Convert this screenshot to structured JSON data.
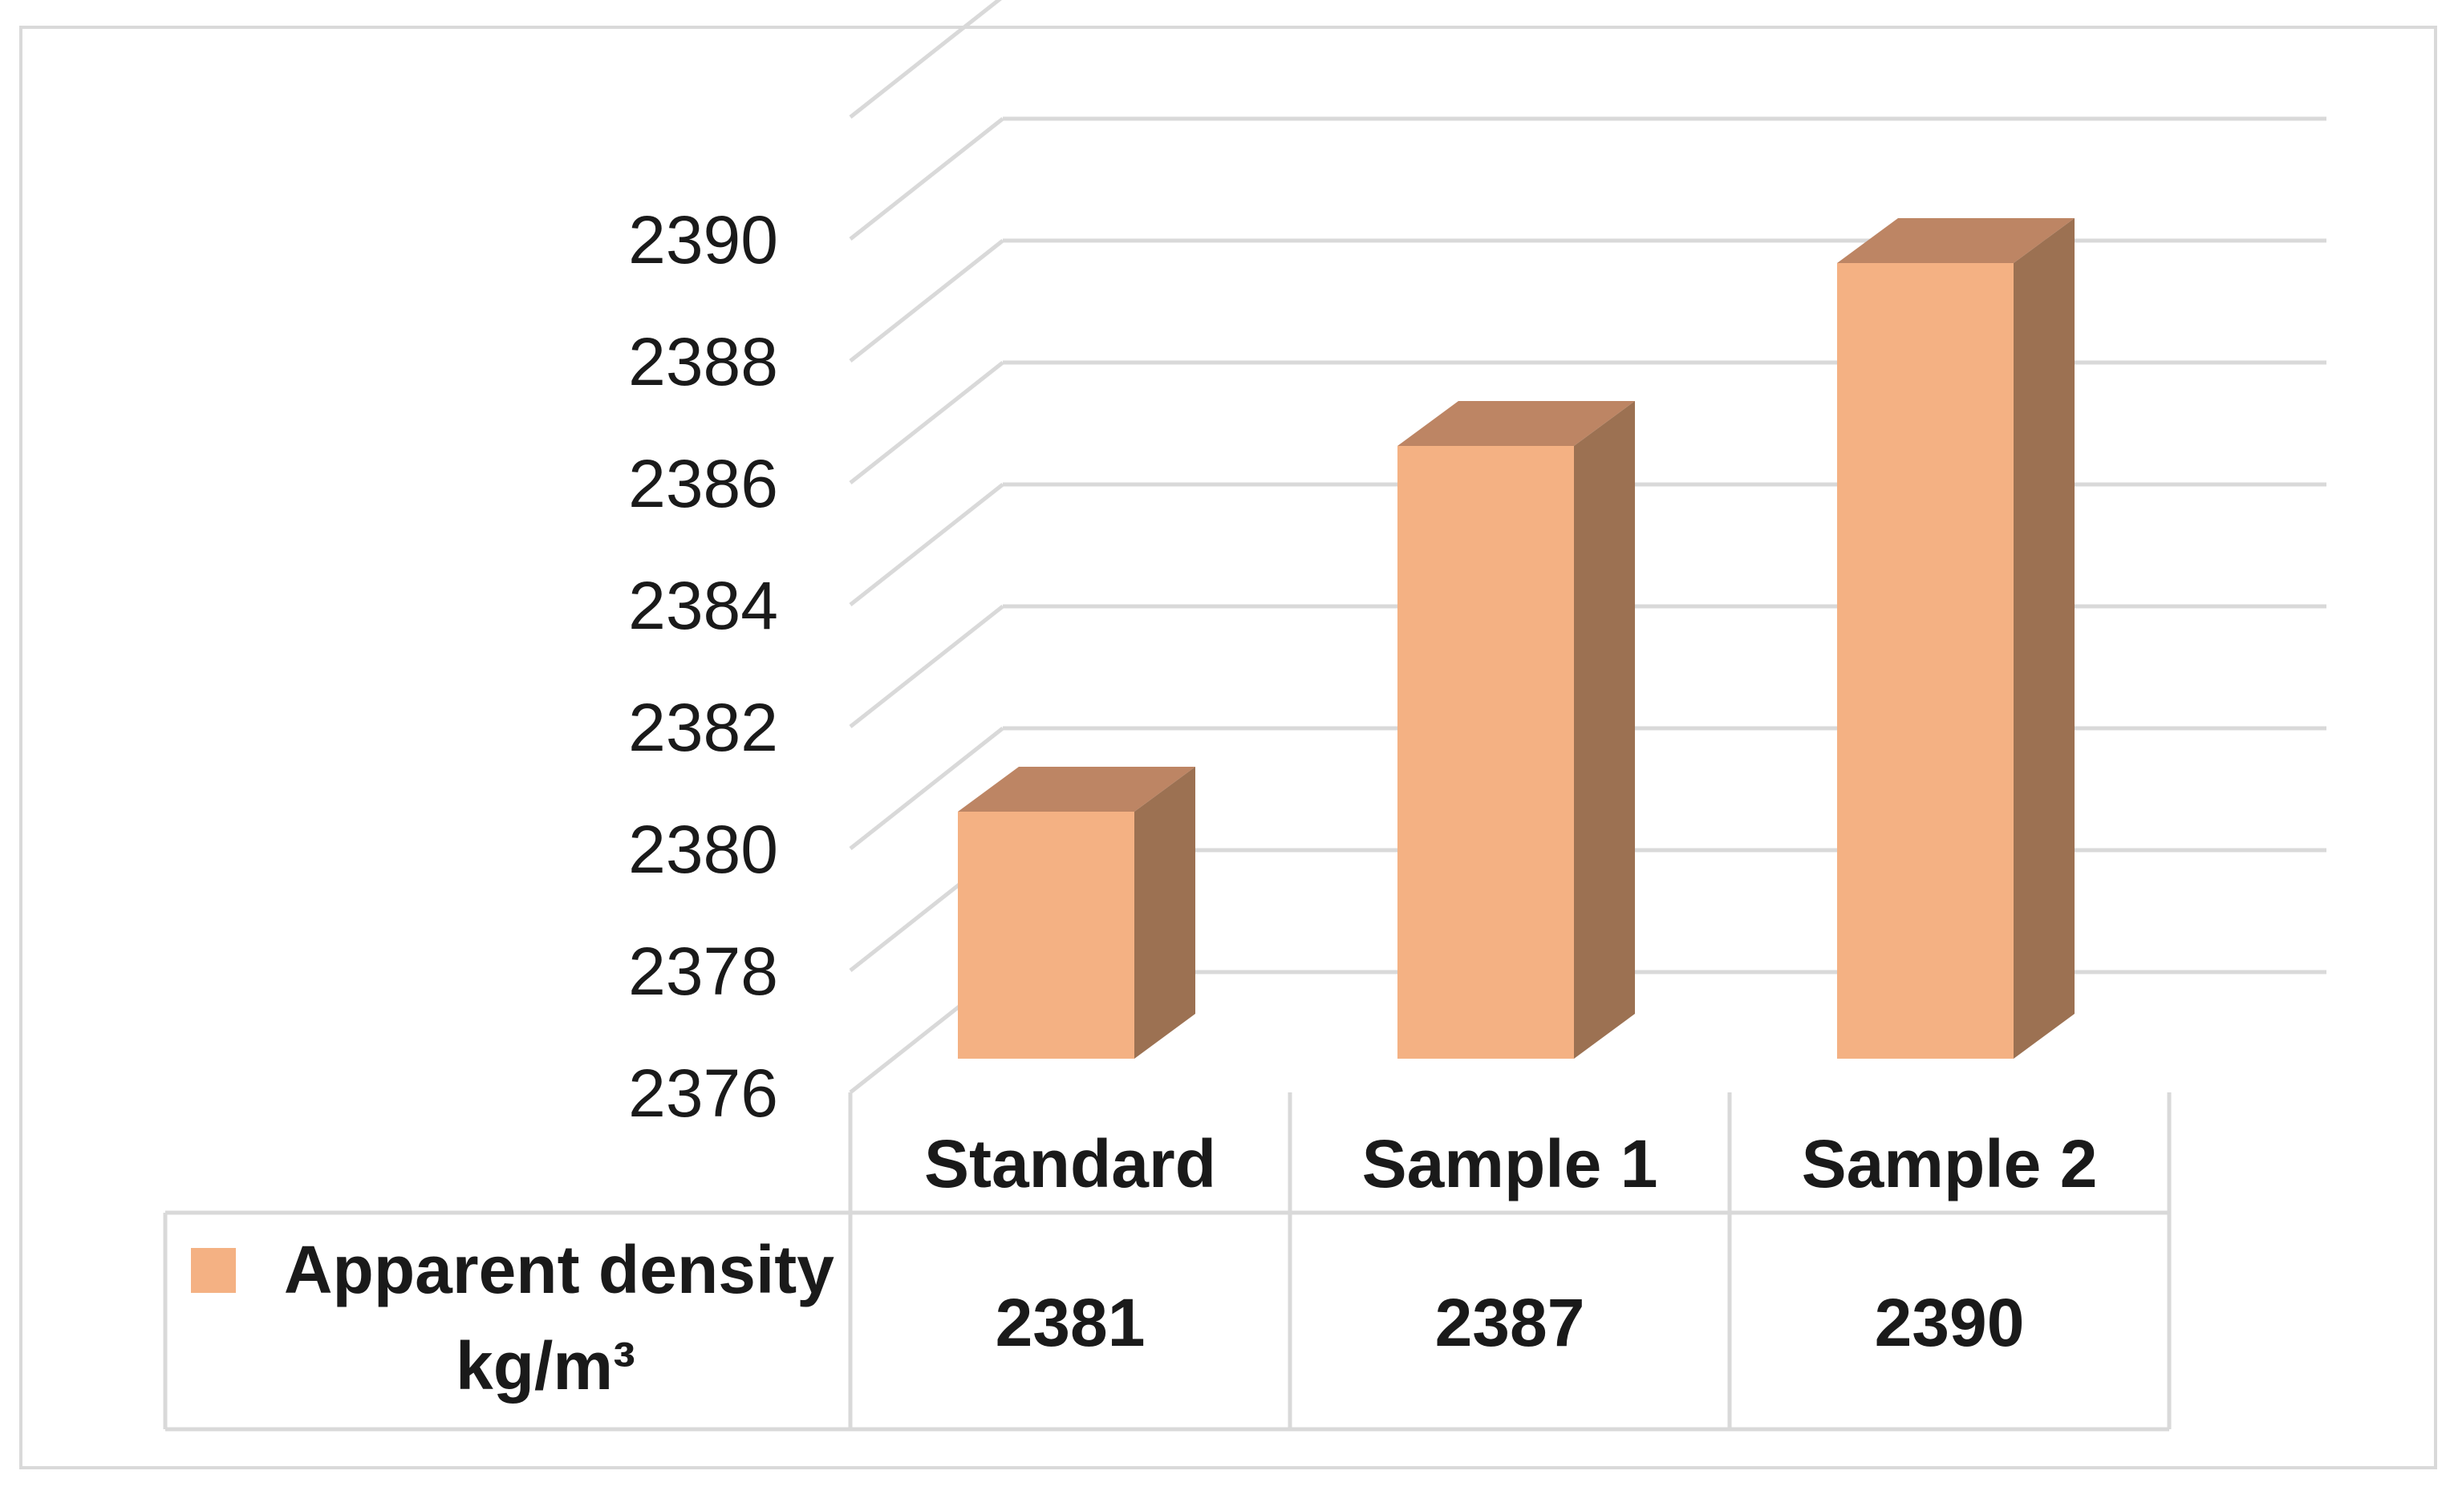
{
  "chart_data": {
    "type": "bar",
    "categories": [
      "Standard",
      "Sample 1",
      "Sample 2"
    ],
    "series": [
      {
        "name": "Apparent density kg/m³",
        "name_lines": [
          "Apparent density",
          "kg/m³"
        ],
        "values": [
          2381,
          2387,
          2390
        ]
      }
    ],
    "ylim": [
      2376,
      2392
    ],
    "yticks": [
      2376,
      2378,
      2380,
      2382,
      2384,
      2386,
      2388,
      2390
    ],
    "grid": true,
    "data_table": true,
    "three_d": true,
    "colors": {
      "front": "#f4b183",
      "top": "#bd8564",
      "side": "#9c7152",
      "grid": "#d9d9d9"
    }
  }
}
